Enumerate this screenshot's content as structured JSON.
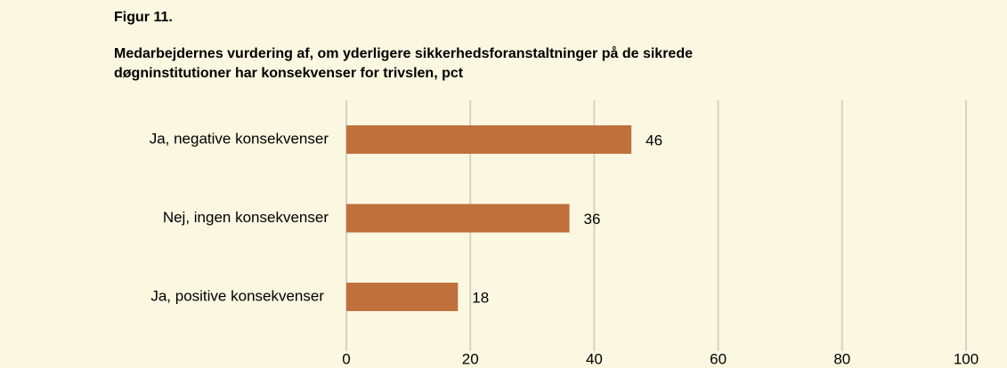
{
  "chart_data": {
    "type": "bar",
    "orientation": "horizontal",
    "title": "Figur 11.",
    "subtitle": [
      "Medarbejdernes vurdering af, om yderligere sikkerhedsforanstaltninger  på de sikrede",
      "døgninstitutioner har konsekvenser for trivslen, pct"
    ],
    "categories": [
      "Ja, negative konsekvenser",
      "Nej, ingen konsekvenser",
      "Ja, positive konsekvenser"
    ],
    "values": [
      46,
      36,
      18
    ],
    "color": "#c0703a",
    "xlim": [
      0,
      100
    ],
    "xticks": [
      0,
      20,
      40,
      60,
      80,
      100
    ],
    "grid": true
  }
}
